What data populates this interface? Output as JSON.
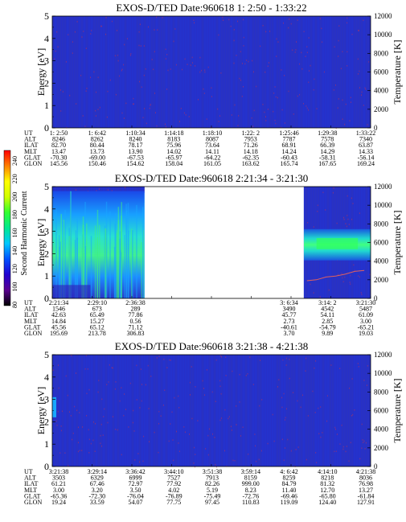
{
  "colors": {
    "background": "#ffffff",
    "spectrogram_base": "#2630c8",
    "noise_red": "#c83250",
    "temperature_trace": "#e06060"
  },
  "colorbar": {
    "label": "Second Harmonic Current",
    "ticks": [
      "80",
      "100",
      "120",
      "140",
      "160",
      "180",
      "200",
      "220",
      "240"
    ],
    "colors": [
      "#000000",
      "#5a0090",
      "#2000d0",
      "#0050ff",
      "#00c8ff",
      "#00e890",
      "#30ff30",
      "#d0ff00",
      "#ffff00",
      "#ff8000",
      "#ff0000"
    ]
  },
  "ephemeris_labels": [
    "UT",
    "ALT",
    "ILAT",
    "MLT",
    "GLAT",
    "GLON"
  ],
  "chart_data": [
    {
      "type": "heatmap",
      "title": "EXOS-D/TED   Date:960618   1: 2:50 - 1:33:22",
      "ylabel": "Energy [eV]",
      "y2label": "Temperature [K]",
      "ylim": [
        0,
        5
      ],
      "y2lim": [
        0,
        12000
      ],
      "yticks": [
        "0",
        "1",
        "2",
        "3",
        "4",
        "5"
      ],
      "y2ticks": [
        "0",
        "2000",
        "4000",
        "6000",
        "8000",
        "10000",
        "12000"
      ],
      "data_gaps": [],
      "features": [],
      "ephemeris": [
        [
          "1: 2:50",
          "1: 6:42",
          "1:10:34",
          "1:14:18",
          "1:18:10",
          "1:22: 2",
          "1:25:46",
          "1:29:38",
          "1:33:22"
        ],
        [
          "8246",
          "8262",
          "8240",
          "8183",
          "8087",
          "7953",
          "7787",
          "7578",
          "7340"
        ],
        [
          "82.70",
          "80.44",
          "78.17",
          "75.96",
          "73.64",
          "71.26",
          "68.91",
          "66.39",
          "63.87"
        ],
        [
          "13.47",
          "13.73",
          "13.90",
          "14.02",
          "14.11",
          "14.18",
          "14.24",
          "14.29",
          "14.33"
        ],
        [
          "-70.30",
          "-69.00",
          "-67.53",
          "-65.97",
          "-64.22",
          "-62.35",
          "-60.43",
          "-58.31",
          "-56.14"
        ],
        [
          "145.56",
          "150.46",
          "154.62",
          "158.04",
          "161.05",
          "163.62",
          "165.74",
          "167.65",
          "169.24"
        ]
      ]
    },
    {
      "type": "heatmap",
      "title": "EXOS-D/TED   Date:960618   2:21:34 - 3:21:30",
      "ylabel": "Energy [eV]",
      "y2label": "Temperature [K]",
      "ylim": [
        0,
        5
      ],
      "y2lim": [
        0,
        12000
      ],
      "yticks": [
        "0",
        "1",
        "2",
        "3",
        "4",
        "5"
      ],
      "y2ticks": [
        "0",
        "2000",
        "4000",
        "6000",
        "8000",
        "10000",
        "12000"
      ],
      "data_gaps": [
        [
          0.29,
          0.79
        ]
      ],
      "features": [
        "left-burst",
        "right-band"
      ],
      "temperature_trace_x": [
        0.8,
        0.83,
        0.86,
        0.89,
        0.92,
        0.95,
        0.98
      ],
      "temperature_trace_K": [
        1900,
        2000,
        2300,
        2400,
        2600,
        2900,
        3000
      ],
      "ephemeris": [
        [
          "2:21:34",
          "2:29:10",
          "2:36:38",
          "",
          "",
          "",
          "3: 6:34",
          "3:14: 2",
          "3:21:30"
        ],
        [
          "1546",
          "673",
          "289",
          "",
          "",
          "",
          "3490",
          "4542",
          "5487"
        ],
        [
          "42.63",
          "65.49",
          "77.86",
          "",
          "",
          "",
          "45.77",
          "54.11",
          "61.09"
        ],
        [
          "14.84",
          "15.27",
          "0.56",
          "",
          "",
          "",
          "2.73",
          "2.85",
          "3.00"
        ],
        [
          "45.56",
          "65.12",
          "71.12",
          "",
          "",
          "",
          "-40.61",
          "-54.79",
          "-65.21"
        ],
        [
          "195.69",
          "213.78",
          "306.83",
          "",
          "",
          "",
          "3.70",
          "9.89",
          "19.03"
        ]
      ]
    },
    {
      "type": "heatmap",
      "title": "EXOS-D/TED   Date:960618   3:21:38 - 4:21:38",
      "ylabel": "Energy [eV]",
      "y2label": "Temperature [K]",
      "ylim": [
        0,
        5
      ],
      "y2lim": [
        0,
        12000
      ],
      "yticks": [
        "0",
        "1",
        "2",
        "3",
        "4",
        "5"
      ],
      "y2ticks": [
        "0",
        "2000",
        "4000",
        "6000",
        "8000",
        "10000",
        "12000"
      ],
      "data_gaps": [],
      "features": [
        "left-spot"
      ],
      "ephemeris": [
        [
          "3:21:38",
          "3:29:14",
          "3:36:42",
          "3:44:10",
          "3:51:38",
          "3:59:14",
          "4: 6:42",
          "4:14:10",
          "4:21:38"
        ],
        [
          "3503",
          "6329",
          "6999",
          "7527",
          "7913",
          "8159",
          "8259",
          "8218",
          "8036"
        ],
        [
          "61.21",
          "67.46",
          "72.97",
          "77.92",
          "82.26",
          "999.00",
          "84.79",
          "81.32",
          "76.98"
        ],
        [
          "3.00",
          "3.20",
          "3.50",
          "4.02",
          "5.19",
          "8.23",
          "11.40",
          "12.70",
          "13.27"
        ],
        [
          "-65.36",
          "-72.30",
          "-76.04",
          "-76.89",
          "-75.49",
          "-72.76",
          "-69.46",
          "-65.80",
          "-61.84"
        ],
        [
          "19.24",
          "33.59",
          "54.07",
          "77.75",
          "97.45",
          "110.83",
          "119.09",
          "124.40",
          "127.91"
        ]
      ]
    }
  ]
}
